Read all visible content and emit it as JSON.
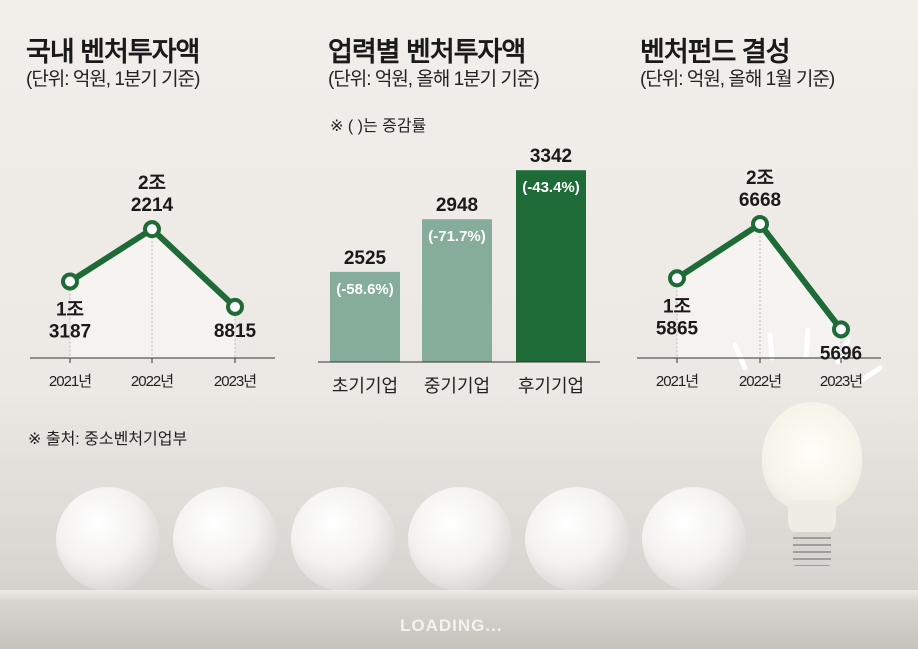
{
  "source_note": "※ 출처: 중소벤처기업부",
  "loading": "LOADING...",
  "chart_data": [
    {
      "type": "line",
      "title": "국내 벤처투자액",
      "subtitle": "(단위: 억원, 1분기 기준)",
      "categories": [
        "2021년",
        "2022년",
        "2023년"
      ],
      "values": [
        13187,
        22214,
        8815
      ],
      "labels": [
        [
          "1조",
          "3187"
        ],
        [
          "2조",
          "2214"
        ],
        [
          "",
          "8815"
        ]
      ],
      "ylim": [
        0,
        30000
      ],
      "color": "#1e6b38"
    },
    {
      "type": "bar",
      "title": "업력별 벤처투자액",
      "subtitle": "(단위: 억원, 올해 1분기 기준)",
      "note": "※ (  )는 증감률",
      "categories": [
        "초기기업",
        "중기기업",
        "후기기업"
      ],
      "values": [
        2525,
        2948,
        3342
      ],
      "value_labels": [
        "2525",
        "2948",
        "3342"
      ],
      "change_labels": [
        "(-58.6%)",
        "(-71.7%)",
        "(-43.4%)"
      ],
      "colors": [
        "#86ad9a",
        "#86ad9a",
        "#1e6b38"
      ],
      "ylim": [
        1800,
        3400
      ]
    },
    {
      "type": "line",
      "title": "벤처펀드 결성",
      "subtitle": "(단위: 억원, 올해 1월 기준)",
      "categories": [
        "2021년",
        "2022년",
        "2023년"
      ],
      "values": [
        15865,
        26668,
        5696
      ],
      "labels": [
        [
          "1조",
          "5865"
        ],
        [
          "2조",
          "6668"
        ],
        [
          "",
          "5696"
        ]
      ],
      "ylim": [
        0,
        40000
      ],
      "color": "#1e6b38"
    }
  ]
}
